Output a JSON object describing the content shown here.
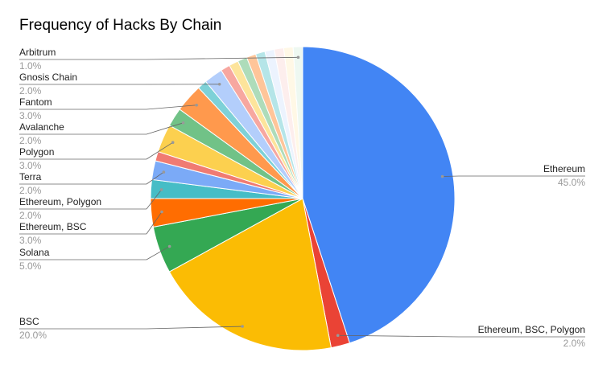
{
  "chart_data": {
    "type": "pie",
    "title": "Frequency of Hacks By Chain",
    "categories": [
      "Ethereum",
      "Ethereum, BSC, Polygon",
      "BSC",
      "Solana",
      "Ethereum, BSC",
      "Ethereum, Polygon",
      "Terra",
      null,
      "Polygon",
      "Avalanche",
      "Fantom",
      null,
      "Gnosis Chain",
      null,
      null,
      null,
      null,
      null,
      null,
      null,
      null,
      "Arbitrum"
    ],
    "values": [
      45,
      2,
      20,
      5,
      3,
      2,
      2,
      1,
      3,
      2,
      3,
      1,
      2,
      1,
      1,
      1,
      1,
      1,
      1,
      1,
      1,
      1
    ],
    "value_labels": [
      "45.0%",
      "2.0%",
      "20.0%",
      "5.0%",
      "3.0%",
      "2.0%",
      "2.0%",
      null,
      "3.0%",
      "2.0%",
      "3.0%",
      null,
      "2.0%",
      null,
      null,
      null,
      null,
      null,
      null,
      null,
      null,
      "1.0%"
    ],
    "colors": [
      "#4285f4",
      "#ea4335",
      "#fbbc04",
      "#34a853",
      "#ff6d01",
      "#46bdc6",
      "#7baaf7",
      "#f07b72",
      "#fcd04f",
      "#71c287",
      "#ff994d",
      "#7ed1d7",
      "#b3cefb",
      "#f7a7a0",
      "#fde49b",
      "#aedcba",
      "#ffc599",
      "#b5e5e8",
      "#ecf3fe",
      "#fdeeed",
      "#fff8e6",
      "#eef8f1"
    ]
  }
}
